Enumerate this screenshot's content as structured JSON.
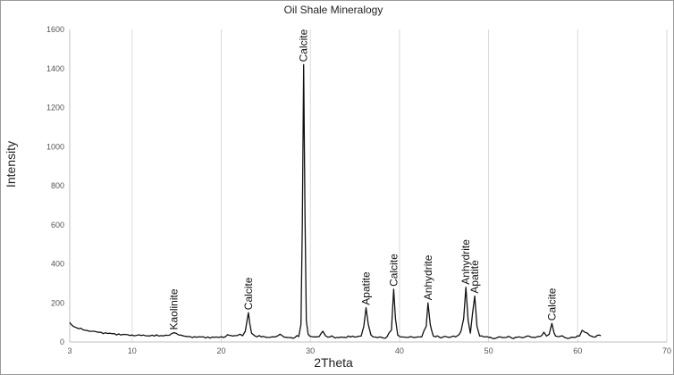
{
  "chart_data": {
    "type": "line",
    "title": "Oil Shale Mineralogy",
    "xlabel": "2Theta",
    "ylabel": "Intensity",
    "xlim": [
      3,
      70
    ],
    "ylim": [
      0,
      1600
    ],
    "x_ticks": [
      3,
      10,
      20,
      30,
      40,
      50,
      60,
      70
    ],
    "y_ticks": [
      0,
      200,
      400,
      600,
      800,
      1000,
      1200,
      1400,
      1600
    ],
    "grid": "vertical",
    "legend": "none",
    "series": [
      {
        "color": "#111111",
        "points": [
          [
            3.0,
            100
          ],
          [
            3.2,
            88
          ],
          [
            3.4,
            80
          ],
          [
            3.7,
            74
          ],
          [
            4.0,
            68
          ],
          [
            4.5,
            62
          ],
          [
            5.0,
            58
          ],
          [
            5.5,
            55
          ],
          [
            6.0,
            52
          ],
          [
            6.5,
            50
          ],
          [
            7.0,
            47
          ],
          [
            7.5,
            45
          ],
          [
            8.0,
            43
          ],
          [
            8.5,
            41
          ],
          [
            9.0,
            39
          ],
          [
            9.5,
            37
          ],
          [
            10.0,
            35
          ],
          [
            10.5,
            34
          ],
          [
            11.0,
            33
          ],
          [
            11.5,
            32
          ],
          [
            12.0,
            31
          ],
          [
            12.5,
            30
          ],
          [
            13.0,
            30
          ],
          [
            13.5,
            31
          ],
          [
            14.0,
            34
          ],
          [
            14.4,
            42
          ],
          [
            14.7,
            48
          ],
          [
            15.0,
            43
          ],
          [
            15.4,
            35
          ],
          [
            15.8,
            30
          ],
          [
            16.5,
            28
          ],
          [
            17.0,
            27
          ],
          [
            17.5,
            27
          ],
          [
            18.0,
            26
          ],
          [
            18.5,
            26
          ],
          [
            19.0,
            25
          ],
          [
            19.5,
            25
          ],
          [
            20.0,
            27
          ],
          [
            20.5,
            28
          ],
          [
            20.9,
            34
          ],
          [
            21.3,
            30
          ],
          [
            21.8,
            33
          ],
          [
            22.1,
            40
          ],
          [
            22.4,
            32
          ],
          [
            22.7,
            55
          ],
          [
            22.9,
            110
          ],
          [
            23.05,
            150
          ],
          [
            23.2,
            95
          ],
          [
            23.4,
            45
          ],
          [
            23.8,
            30
          ],
          [
            24.5,
            26
          ],
          [
            25.0,
            24
          ],
          [
            25.5,
            24
          ],
          [
            26.0,
            25
          ],
          [
            26.3,
            30
          ],
          [
            26.6,
            40
          ],
          [
            26.9,
            30
          ],
          [
            27.3,
            24
          ],
          [
            27.8,
            23
          ],
          [
            28.3,
            24
          ],
          [
            28.7,
            28
          ],
          [
            28.95,
            90
          ],
          [
            29.1,
            600
          ],
          [
            29.25,
            1420
          ],
          [
            29.4,
            650
          ],
          [
            29.55,
            110
          ],
          [
            29.75,
            40
          ],
          [
            30.1,
            28
          ],
          [
            30.5,
            26
          ],
          [
            31.0,
            28
          ],
          [
            31.4,
            55
          ],
          [
            31.7,
            32
          ],
          [
            32.2,
            26
          ],
          [
            33.0,
            24
          ],
          [
            33.8,
            24
          ],
          [
            34.5,
            25
          ],
          [
            35.2,
            26
          ],
          [
            35.7,
            30
          ],
          [
            36.0,
            80
          ],
          [
            36.25,
            175
          ],
          [
            36.5,
            90
          ],
          [
            36.8,
            35
          ],
          [
            37.3,
            25
          ],
          [
            38.0,
            24
          ],
          [
            38.6,
            26
          ],
          [
            39.1,
            60
          ],
          [
            39.35,
            270
          ],
          [
            39.55,
            120
          ],
          [
            39.8,
            35
          ],
          [
            40.3,
            25
          ],
          [
            41.0,
            24
          ],
          [
            41.8,
            24
          ],
          [
            42.5,
            26
          ],
          [
            43.0,
            80
          ],
          [
            43.2,
            200
          ],
          [
            43.45,
            90
          ],
          [
            43.8,
            30
          ],
          [
            44.5,
            24
          ],
          [
            45.5,
            24
          ],
          [
            46.3,
            26
          ],
          [
            46.9,
            55
          ],
          [
            47.2,
            120
          ],
          [
            47.45,
            280
          ],
          [
            47.7,
            110
          ],
          [
            47.95,
            45
          ],
          [
            48.2,
            150
          ],
          [
            48.45,
            235
          ],
          [
            48.7,
            80
          ],
          [
            49.0,
            30
          ],
          [
            50.0,
            24
          ],
          [
            51.0,
            23
          ],
          [
            52.0,
            23
          ],
          [
            53.0,
            24
          ],
          [
            54.0,
            24
          ],
          [
            55.0,
            25
          ],
          [
            55.8,
            28
          ],
          [
            56.2,
            50
          ],
          [
            56.5,
            30
          ],
          [
            56.8,
            40
          ],
          [
            57.1,
            95
          ],
          [
            57.35,
            45
          ],
          [
            57.7,
            28
          ],
          [
            58.5,
            24
          ],
          [
            59.5,
            24
          ],
          [
            60.2,
            30
          ],
          [
            60.5,
            60
          ],
          [
            60.8,
            50
          ],
          [
            61.1,
            45
          ],
          [
            61.5,
            30
          ],
          [
            62.0,
            25
          ],
          [
            62.4,
            35
          ],
          [
            62.6,
            32
          ]
        ]
      }
    ],
    "annotations": [
      {
        "text": "Kaolinite",
        "x": 14.7,
        "y": 48
      },
      {
        "text": "Calcite",
        "x": 23.05,
        "y": 150
      },
      {
        "text": "Calcite",
        "x": 29.25,
        "y": 1420
      },
      {
        "text": "Apatite",
        "x": 36.25,
        "y": 175
      },
      {
        "text": "Calcite",
        "x": 39.35,
        "y": 270
      },
      {
        "text": "Anhydrite",
        "x": 43.2,
        "y": 200
      },
      {
        "text": "Anhydrite",
        "x": 47.45,
        "y": 280
      },
      {
        "text": "Apatite",
        "x": 48.45,
        "y": 235
      },
      {
        "text": "Calcite",
        "x": 57.1,
        "y": 95
      }
    ]
  }
}
